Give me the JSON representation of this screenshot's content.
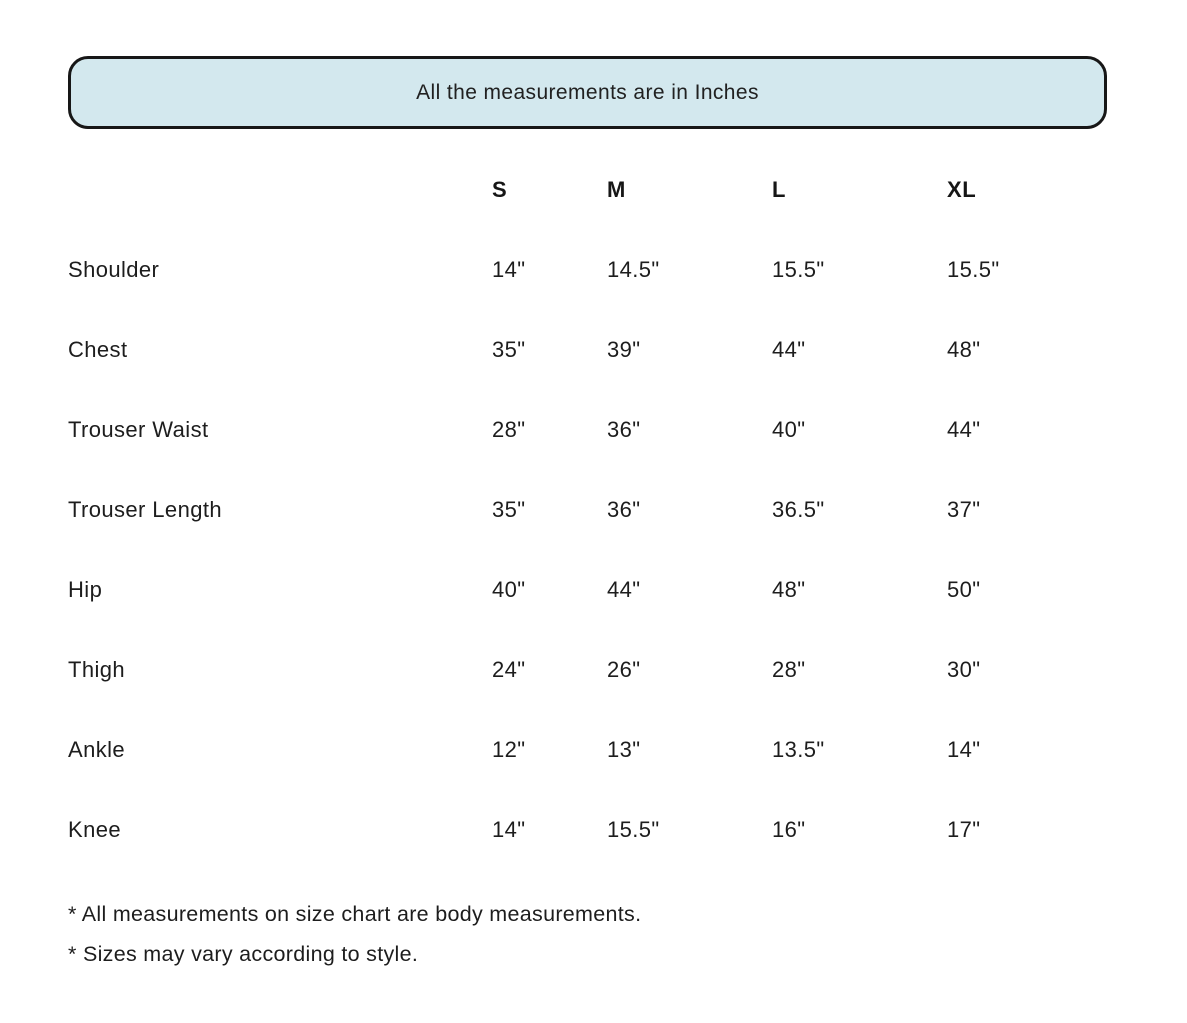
{
  "banner": {
    "bg_color": "#d3e8ee",
    "border_color": "#171717"
  },
  "chart_data": {
    "type": "table",
    "title": "All the measurements are in Inches",
    "unit": "Inches",
    "columns": [
      "S",
      "M",
      "L",
      "XL"
    ],
    "rows": [
      {
        "label": "Shoulder",
        "values": [
          "14\"",
          "14.5\"",
          "15.5\"",
          "15.5\""
        ]
      },
      {
        "label": "Chest",
        "values": [
          "35\"",
          "39\"",
          "44\"",
          "48\""
        ]
      },
      {
        "label": "Trouser Waist",
        "values": [
          "28\"",
          "36\"",
          "40\"",
          "44\""
        ]
      },
      {
        "label": "Trouser Length",
        "values": [
          "35\"",
          "36\"",
          "36.5\"",
          "37\""
        ]
      },
      {
        "label": "Hip",
        "values": [
          "40\"",
          "44\"",
          "48\"",
          "50\""
        ]
      },
      {
        "label": "Thigh",
        "values": [
          "24\"",
          "26\"",
          "28\"",
          "30\""
        ]
      },
      {
        "label": "Ankle",
        "values": [
          "12\"",
          "13\"",
          "13.5\"",
          "14\""
        ]
      },
      {
        "label": "Knee",
        "values": [
          "14\"",
          "15.5\"",
          "16\"",
          "17\""
        ]
      }
    ]
  },
  "notes": [
    "* All measurements on size chart are body measurements.",
    "* Sizes may vary according to style."
  ]
}
